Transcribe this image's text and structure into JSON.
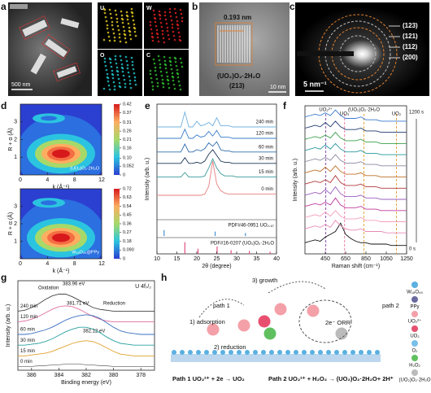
{
  "figure": {
    "panel_labels": [
      "a",
      "b",
      "c",
      "d",
      "e",
      "f",
      "g",
      "h"
    ],
    "a": {
      "scale_bar": "500 nm",
      "maps": [
        "U",
        "W",
        "O",
        "C"
      ]
    },
    "b": {
      "d_spacing": "0.193 nm",
      "phase": "(UO₂)O₂·2H₂O",
      "plane": "(213)",
      "scale_bar": "10 nm"
    },
    "c": {
      "rings": [
        "(123)",
        "(121)",
        "(112)",
        "(200)"
      ],
      "scale_bar": "5 nm⁻¹"
    },
    "h": {
      "steps": [
        "3) growth",
        "path 1",
        "1) adsorption",
        "2) reduction",
        "2e⁻ ORR",
        "path 2"
      ],
      "equations": [
        "Path 1 UO₂²⁺ + 2e → UO₂",
        "Path 2 UO₂²⁺ + H₂O₂ → (UO₂)O₂·2H₂O+ 2H⁺"
      ],
      "legend": [
        "W₁₈O₄₉",
        "PPy",
        "UO₂²⁺",
        "UO₂",
        "O₂",
        "H₂O₂",
        "(UO₂)O₂·2H₂O"
      ]
    }
  },
  "chart_data": [
    {
      "type": "contour",
      "label": "(UO₂)O₂·2H₂O",
      "xlabel": "k (Å⁻¹)",
      "ylabel": "R + α (Å)",
      "xlim": [
        0,
        12
      ],
      "xticks": [
        0,
        4,
        8,
        12
      ],
      "ylim": [
        0,
        4
      ],
      "yticks": [
        1,
        2,
        3
      ],
      "clim": [
        0,
        0.42
      ],
      "colorbar_ticks": [
        0.42,
        0.37,
        0.31,
        0.26,
        0.21,
        0.16,
        {
          "value": 0.1,
          "label": "0.10"
        },
        0.052,
        0
      ]
    },
    {
      "type": "contour",
      "label": "W₁₈O₄₉@PPy",
      "xlabel": "k (Å⁻¹)",
      "ylabel": "R + α (Å)",
      "xlim": [
        0,
        12
      ],
      "xticks": [
        0,
        4,
        8,
        12
      ],
      "ylim": [
        0,
        4
      ],
      "yticks": [
        1,
        2,
        3
      ],
      "clim": [
        0,
        0.72
      ],
      "colorbar_ticks": [
        0.72,
        0.63,
        0.54,
        0.45,
        0.36,
        0.27,
        0.18,
        {
          "value": 0.09,
          "label": "0.090"
        },
        0
      ]
    },
    {
      "type": "line",
      "xlabel": "2θ (degree)",
      "ylabel": "Intensity (arb. u.)",
      "names_side": "right",
      "xlim": [
        10,
        40
      ],
      "xticks": [
        10,
        15,
        20,
        25,
        30,
        35,
        40
      ],
      "ylim": [
        0,
        100
      ],
      "x": [
        10,
        11,
        12,
        13,
        14,
        15,
        16,
        17,
        18,
        19,
        20,
        21,
        22,
        23,
        24,
        25,
        26,
        27,
        28,
        29,
        30,
        31,
        32,
        33,
        34,
        35,
        36,
        37,
        38,
        39,
        40
      ],
      "series": [
        {
          "name": "240 min",
          "color": "#6fb0e0",
          "values": [
            80,
            80,
            80,
            80,
            80,
            80,
            80,
            93,
            80,
            80,
            85,
            81,
            82,
            84,
            81,
            88,
            81,
            81,
            81,
            80,
            80,
            80,
            80,
            80,
            80,
            80,
            80,
            80,
            80,
            80,
            80
          ]
        },
        {
          "name": "120 min",
          "color": "#3a7fc8",
          "values": [
            70,
            70,
            70,
            70,
            70,
            70,
            70,
            78,
            70,
            70,
            73,
            71,
            72,
            76,
            72,
            77,
            71,
            71,
            71,
            70,
            70,
            70,
            70,
            70,
            70,
            70,
            70,
            70,
            70,
            70,
            70
          ]
        },
        {
          "name": "60 min",
          "color": "#2f6db0",
          "values": [
            58,
            58,
            58,
            58,
            58,
            58,
            58,
            65,
            58,
            58,
            60,
            59,
            61,
            66,
            63,
            67,
            60,
            59,
            59,
            58,
            58,
            58,
            58,
            58,
            58,
            58,
            58,
            58,
            58,
            58,
            58
          ]
        },
        {
          "name": "30 min",
          "color": "#1c3557",
          "values": [
            48,
            48,
            48,
            48,
            48,
            48,
            48,
            53,
            48,
            48,
            49,
            48,
            50,
            56,
            60,
            55,
            50,
            49,
            49,
            48,
            48,
            48,
            48,
            48,
            48,
            48,
            48,
            48,
            48,
            48,
            48
          ]
        },
        {
          "name": "15 min",
          "color": "#3a9a9a",
          "values": [
            36,
            36,
            36,
            36,
            36,
            36,
            36,
            40,
            36,
            36,
            36,
            36,
            37,
            44,
            52,
            44,
            39,
            37,
            37,
            37,
            36,
            36,
            36,
            36,
            36,
            36,
            36,
            36,
            36,
            36,
            36
          ]
        },
        {
          "name": "0 min",
          "color": "#e88080",
          "values": [
            20,
            20,
            20,
            20,
            20,
            20,
            20,
            20,
            20,
            20,
            20,
            20,
            21,
            28,
            50,
            30,
            24,
            22,
            21,
            21,
            21,
            21,
            21,
            21,
            21,
            21,
            21,
            21,
            21,
            21,
            21
          ]
        }
      ],
      "references": [
        {
          "name": "PDF#46-0951 UO₂.₆₇",
          "color": "#4a90d0",
          "positions": [
            11.8,
            24.6,
            32.2
          ],
          "heights": [
            40,
            30,
            20
          ]
        },
        {
          "name": "PDF#16-0207 (UO₂)O₂·2H₂O",
          "color": "#e05080",
          "positions": [
            17,
            20.3,
            25.1,
            28.6,
            33.2,
            38.4
          ],
          "heights": [
            80,
            35,
            50,
            25,
            20,
            15
          ]
        }
      ]
    },
    {
      "type": "line",
      "xlabel": "Raman shift (cm⁻¹)",
      "ylabel": "Intensity (arb. u.)",
      "xlim": [
        250,
        1250
      ],
      "xticks": [
        450,
        650,
        850,
        1050,
        1250
      ],
      "ylim": [
        0,
        106
      ],
      "x": [
        250,
        300,
        350,
        400,
        450,
        500,
        550,
        600,
        650,
        700,
        750,
        800,
        850,
        900,
        950,
        1000,
        1050,
        1100,
        1150,
        1200,
        1250
      ],
      "time_labels": [
        "1200 s",
        "0 s"
      ],
      "bands": [
        {
          "label": "UO₂²⁺",
          "x": 455,
          "color": "#7b3fa0"
        },
        {
          "label": "UO₃",
          "x": 640,
          "color": "#e86fa0"
        },
        {
          "label": "(UO₂)O₂·2H₂O",
          "x": 830,
          "color": "#e0a030"
        },
        {
          "label": "UO₂",
          "x": 1150,
          "color": "#e0a030"
        }
      ],
      "series": [
        {
          "color": "#111111",
          "values": [
            8,
            9,
            10,
            9,
            12,
            14,
            16,
            22,
            14,
            11,
            9,
            8,
            8,
            7,
            7,
            7,
            7,
            6,
            6,
            6,
            6
          ]
        },
        {
          "color": "#e88ab5",
          "values": [
            18,
            19,
            20,
            19,
            21,
            19,
            24,
            20,
            18,
            17,
            17,
            18,
            16,
            16,
            16,
            16,
            15,
            15,
            15,
            15,
            15
          ]
        },
        {
          "color": "#f4a0c0",
          "values": [
            26,
            27,
            28,
            27,
            30,
            27,
            31,
            27,
            25,
            25,
            25,
            26,
            24,
            24,
            24,
            23,
            23,
            23,
            23,
            23,
            23
          ]
        },
        {
          "color": "#c03aa0",
          "values": [
            34,
            35,
            36,
            35,
            37,
            35,
            40,
            35,
            33,
            33,
            33,
            34,
            32,
            32,
            32,
            31,
            31,
            31,
            31,
            31,
            31
          ]
        },
        {
          "color": "#9a5fbf",
          "values": [
            42,
            43,
            44,
            43,
            46,
            43,
            48,
            43,
            41,
            41,
            41,
            42,
            40,
            40,
            40,
            39,
            39,
            39,
            39,
            39,
            39
          ]
        },
        {
          "color": "#b03a3a",
          "values": [
            50,
            51,
            52,
            51,
            53,
            51,
            56,
            51,
            49,
            49,
            49,
            50,
            48,
            48,
            48,
            47,
            47,
            47,
            47,
            47,
            47
          ]
        },
        {
          "color": "#c0702a",
          "values": [
            58,
            59,
            60,
            59,
            62,
            59,
            63,
            59,
            57,
            57,
            57,
            58,
            56,
            56,
            56,
            55,
            55,
            55,
            55,
            55,
            55
          ]
        },
        {
          "color": "#8a8aa0",
          "values": [
            66,
            67,
            68,
            67,
            69,
            67,
            71,
            67,
            65,
            65,
            65,
            66,
            64,
            64,
            64,
            63,
            63,
            63,
            63,
            63,
            63
          ]
        },
        {
          "color": "#2a9aa0",
          "values": [
            74,
            75,
            76,
            75,
            78,
            75,
            79,
            75,
            73,
            73,
            73,
            74,
            72,
            72,
            72,
            71,
            71,
            71,
            71,
            71,
            71
          ]
        },
        {
          "color": "#3aa04a",
          "values": [
            82,
            83,
            84,
            83,
            85,
            83,
            87,
            83,
            81,
            81,
            81,
            82,
            80,
            80,
            80,
            79,
            79,
            79,
            79,
            79,
            79
          ]
        },
        {
          "color": "#1f3a6e",
          "values": [
            90,
            91,
            92,
            91,
            94,
            91,
            95,
            91,
            89,
            89,
            89,
            90,
            88,
            88,
            88,
            87,
            87,
            87,
            87,
            87,
            87
          ]
        },
        {
          "color": "#3a7ad0",
          "values": [
            98,
            99,
            100,
            99,
            101,
            99,
            103,
            99,
            97,
            97,
            97,
            98,
            96,
            96,
            96,
            95,
            95,
            95,
            95,
            95,
            95
          ]
        }
      ]
    },
    {
      "type": "line",
      "xlabel": "Binding energy (eV)",
      "ylabel": "Intensity (arb. u.)",
      "names_side": "left",
      "label": "U 4f₇/₂",
      "annotations": [
        "Oxidation",
        "383.96 eV",
        "381.71 eV",
        "Reduction",
        "382.12 eV"
      ],
      "xlim": [
        387,
        377
      ],
      "xticks": [
        386,
        384,
        382,
        380,
        378
      ],
      "ylim": [
        0,
        100
      ],
      "x": [
        387,
        386.5,
        386,
        385.5,
        385,
        384.5,
        384,
        383.5,
        383,
        382.5,
        382,
        381.5,
        381,
        380.5,
        380,
        379.5,
        379,
        378.5,
        378,
        377.5,
        377
      ],
      "series": [
        {
          "name": "240 min",
          "color": "#444444",
          "values": [
            66,
            67,
            70,
            74,
            79,
            83,
            85,
            85,
            82,
            78,
            74,
            70,
            68,
            67,
            66,
            66,
            66,
            66,
            66,
            66,
            66
          ]
        },
        {
          "name": "120 min",
          "color": "#e070a0",
          "values": [
            54,
            55,
            57,
            60,
            64,
            68,
            71,
            72,
            71,
            68,
            64,
            60,
            57,
            55,
            54,
            54,
            54,
            54,
            54,
            54,
            54
          ]
        },
        {
          "name": "60 min",
          "color": "#3a6fc0",
          "values": [
            40,
            40,
            41,
            43,
            45,
            48,
            52,
            56,
            59,
            61,
            62,
            61,
            58,
            53,
            48,
            44,
            42,
            41,
            40,
            40,
            40
          ]
        },
        {
          "name": "30 min",
          "color": "#2aa0a0",
          "values": [
            28,
            28,
            29,
            30,
            32,
            35,
            39,
            43,
            46,
            48,
            48,
            46,
            42,
            37,
            33,
            30,
            29,
            28,
            28,
            28,
            28
          ]
        },
        {
          "name": "15 min",
          "color": "#e0a030",
          "values": [
            16,
            16,
            17,
            18,
            19,
            21,
            24,
            27,
            30,
            32,
            33,
            32,
            29,
            25,
            21,
            18,
            17,
            16,
            16,
            16,
            16
          ]
        },
        {
          "name": "0 min",
          "color": "#888888",
          "values": [
            4,
            4,
            4,
            5,
            5,
            6,
            6,
            7,
            7,
            7,
            6,
            6,
            5,
            5,
            4,
            4,
            4,
            4,
            4,
            4,
            4
          ]
        }
      ]
    }
  ]
}
